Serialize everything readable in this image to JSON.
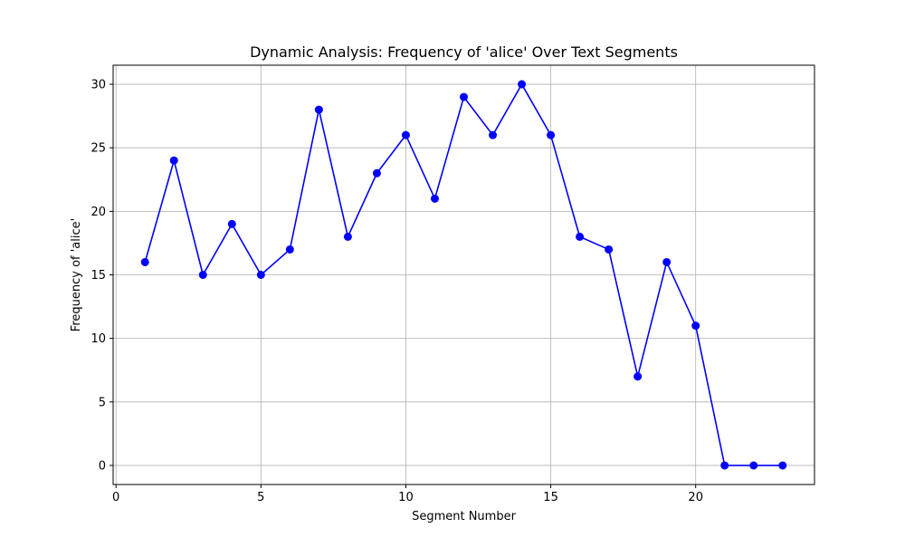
{
  "chart_data": {
    "type": "line",
    "title": "Dynamic Analysis: Frequency of 'alice' Over Text Segments",
    "xlabel": "Segment Number",
    "ylabel": "Frequency of 'alice'",
    "x": [
      1,
      2,
      3,
      4,
      5,
      6,
      7,
      8,
      9,
      10,
      11,
      12,
      13,
      14,
      15,
      16,
      17,
      18,
      19,
      20,
      21,
      22,
      23
    ],
    "series": [
      {
        "values": [
          16,
          24,
          15,
          19,
          15,
          17,
          28,
          18,
          23,
          26,
          21,
          29,
          26,
          30,
          26,
          18,
          17,
          7,
          16,
          11,
          0,
          0,
          0
        ],
        "color": "#0000ff",
        "marker": "circle"
      }
    ],
    "xlim": [
      -0.1,
      24.1
    ],
    "ylim": [
      -1.5,
      31.5
    ],
    "xticks": [
      0,
      5,
      10,
      15,
      20
    ],
    "yticks": [
      0,
      5,
      10,
      15,
      20,
      25,
      30
    ],
    "grid": true,
    "legend": "none"
  }
}
